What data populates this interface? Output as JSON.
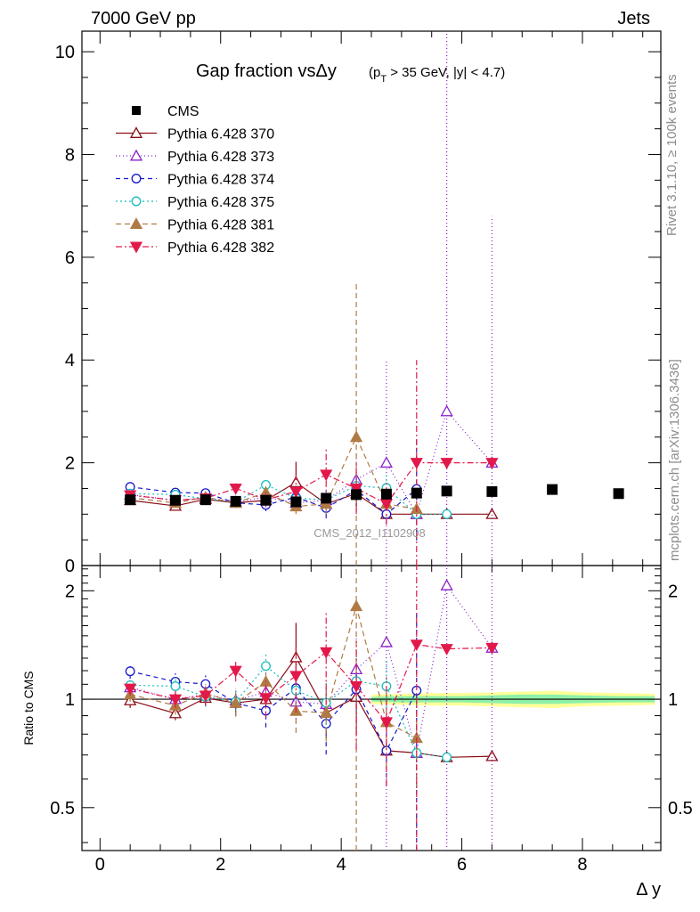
{
  "header": {
    "left": "7000 GeV pp",
    "right": "Jets"
  },
  "side_labels": {
    "rivet": "Rivet 3.1.10, ≥ 100k events",
    "mcplots": "mcplots.cern.ch [arXiv:1306.3436]"
  },
  "chart_data": {
    "type": "scatter",
    "title": "Gap fraction vsΔy",
    "title_suffix": "(pT > 35 GeV, |y| < 4.7)",
    "watermark": "CMS_2012_I1102908",
    "xlabel": "Δ y",
    "ylabel_ratio": "Ratio to CMS",
    "xlim": [
      -0.3,
      9.3
    ],
    "ylim_main": [
      0,
      10.4
    ],
    "ylim_ratio": [
      0.38,
      2.35
    ],
    "ratio_scale": "log",
    "x_ticks": [
      0,
      2,
      4,
      6,
      8
    ],
    "y_ticks_main": [
      0,
      2,
      4,
      6,
      8,
      10
    ],
    "y_ticks_ratio": [
      0.5,
      1,
      2
    ],
    "legend_position": "top-left",
    "cms": {
      "name": "CMS",
      "color": "#000000",
      "x": [
        0.5,
        1.25,
        1.75,
        2.25,
        2.75,
        3.25,
        3.75,
        4.25,
        4.75,
        5.25,
        5.75,
        6.5,
        7.5,
        8.6
      ],
      "y": [
        1.28,
        1.27,
        1.28,
        1.25,
        1.27,
        1.24,
        1.31,
        1.38,
        1.39,
        1.41,
        1.45,
        1.44,
        1.48,
        1.4
      ]
    },
    "cms_band": {
      "x": [
        4.5,
        5.0,
        5.5,
        6.0,
        6.5,
        7.0,
        7.5,
        8.0,
        8.6,
        9.2
      ],
      "inner": [
        0.015,
        0.02,
        0.02,
        0.02,
        0.025,
        0.03,
        0.03,
        0.025,
        0.02,
        0.02
      ],
      "outer": [
        0.03,
        0.035,
        0.04,
        0.04,
        0.045,
        0.05,
        0.055,
        0.045,
        0.04,
        0.035
      ]
    },
    "series": [
      {
        "name": "Pythia 6.428 370",
        "color": "#8b0d17",
        "dash": "",
        "marker": "tri-up-open",
        "x": [
          0.5,
          1.25,
          1.75,
          2.25,
          2.75,
          3.25,
          3.75,
          4.25,
          4.75,
          5.25,
          5.75,
          6.5
        ],
        "y": [
          1.27,
          1.16,
          1.29,
          1.22,
          1.27,
          1.62,
          1.2,
          1.4,
          1.0,
          1.0,
          1.0,
          1.0
        ],
        "err": [
          0.06,
          0.05,
          0.07,
          0.08,
          0.1,
          0.4,
          0.15,
          0.3,
          0,
          0,
          0,
          0
        ]
      },
      {
        "name": "Pythia 6.428 373",
        "color": "#8a1fcc",
        "dash": "1,3",
        "marker": "tri-up-open",
        "x": [
          0.5,
          1.25,
          1.75,
          2.25,
          2.75,
          3.25,
          3.75,
          4.25,
          4.75,
          5.25,
          5.75,
          6.5
        ],
        "y": [
          1.38,
          1.27,
          1.32,
          1.24,
          1.33,
          1.22,
          1.27,
          1.67,
          2.0,
          1.0,
          3.0,
          2.0
        ],
        "err": [
          0.06,
          0.06,
          0.08,
          0.1,
          0.12,
          0.15,
          0.2,
          0.5,
          2.0,
          0,
          8.0,
          4.8
        ]
      },
      {
        "name": "Pythia 6.428 374",
        "color": "#1717cc",
        "dash": "5,4",
        "marker": "circle-open",
        "x": [
          0.5,
          1.25,
          1.75,
          2.25,
          2.75,
          3.25,
          3.75,
          4.25,
          4.75,
          5.25
        ],
        "y": [
          1.53,
          1.42,
          1.41,
          1.22,
          1.18,
          1.33,
          1.12,
          1.47,
          1.0,
          1.49
        ],
        "err": [
          0.07,
          0.08,
          0.08,
          0.1,
          0.12,
          0.15,
          0.2,
          0.3,
          0.2,
          1.0
        ]
      },
      {
        "name": "Pythia 6.428 375",
        "color": "#17bdbd",
        "dash": "2,3",
        "marker": "circle-open",
        "x": [
          0.5,
          1.25,
          1.75,
          2.25,
          2.75,
          3.25,
          3.75,
          4.25,
          4.75,
          5.25,
          5.75
        ],
        "y": [
          1.4,
          1.38,
          1.3,
          1.23,
          1.57,
          1.31,
          1.28,
          1.55,
          1.51,
          1.0,
          1.0
        ],
        "err": [
          0.06,
          0.07,
          0.08,
          0.1,
          0.12,
          0.15,
          0.2,
          0.3,
          0.3,
          0,
          0
        ]
      },
      {
        "name": "Pythia 6.428 381",
        "color": "#b07a45",
        "dash": "6,4",
        "marker": "tri-up-filled",
        "x": [
          0.5,
          1.25,
          1.75,
          2.25,
          2.75,
          3.25,
          3.75,
          4.25,
          4.75,
          5.25
        ],
        "y": [
          1.32,
          1.22,
          1.33,
          1.22,
          1.42,
          1.15,
          1.2,
          2.5,
          1.2,
          1.1
        ],
        "err": [
          0.06,
          0.07,
          0.08,
          0.1,
          0.12,
          0.15,
          0.2,
          3.0,
          0.3,
          0.3
        ]
      },
      {
        "name": "Pythia 6.428 382",
        "color": "#e3184a",
        "dash": "7,3,2,3",
        "marker": "tri-down-filled",
        "x": [
          0.5,
          1.25,
          1.75,
          2.25,
          2.75,
          3.25,
          3.75,
          4.25,
          4.75,
          5.25,
          5.75,
          6.5
        ],
        "y": [
          1.37,
          1.27,
          1.31,
          1.5,
          1.28,
          1.44,
          1.77,
          1.5,
          1.2,
          2.0,
          2.0,
          2.0
        ],
        "err": [
          0.06,
          0.07,
          0.08,
          0.1,
          0.15,
          0.3,
          0.5,
          0.5,
          0.4,
          2.0,
          0,
          0
        ]
      }
    ]
  }
}
